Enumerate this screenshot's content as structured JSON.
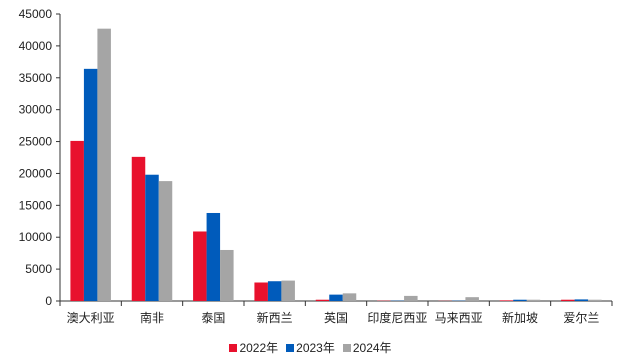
{
  "chart_data": {
    "type": "bar",
    "title": "",
    "xlabel": "",
    "ylabel": "",
    "categories": [
      "澳大利亚",
      "南非",
      "泰国",
      "新西兰",
      "英国",
      "印度尼西亚",
      "马来西亚",
      "新加坡",
      "爱尔兰"
    ],
    "series": [
      {
        "name": "2022年",
        "color": "#e8112d",
        "values": [
          25100,
          22600,
          10900,
          2900,
          200,
          50,
          30,
          100,
          200
        ]
      },
      {
        "name": "2023年",
        "color": "#005bbb",
        "values": [
          36400,
          19800,
          13800,
          3100,
          1000,
          50,
          50,
          200,
          250
        ]
      },
      {
        "name": "2024年",
        "color": "#a5a5a5",
        "values": [
          42700,
          18800,
          8000,
          3200,
          1200,
          800,
          600,
          200,
          200
        ]
      }
    ],
    "ylim": [
      0,
      45000
    ],
    "yticks": [
      "0",
      "5000",
      "10000",
      "15000",
      "20000",
      "25000",
      "30000",
      "35000",
      "40000",
      "45000"
    ],
    "grid": false,
    "legend_position": "bottom"
  }
}
